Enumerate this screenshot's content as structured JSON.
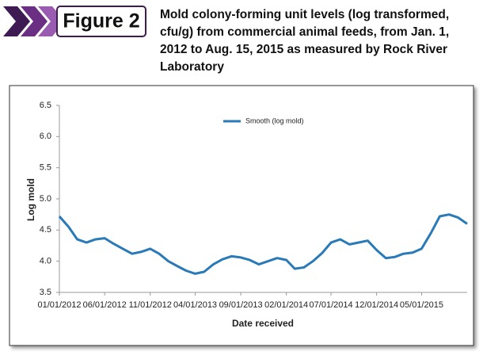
{
  "chart_data": {
    "type": "line",
    "figure_label": "Figure 2",
    "title": "Mold colony-forming unit levels (log transformed, cfu/g) from commercial animal feeds, from Jan. 1, 2012 to Aug. 15, 2015 as measured by Rock River Laboratory",
    "y_label": "Log mold",
    "x_label": "Date received",
    "x": [
      "2012-01-01",
      "2012-02-01",
      "2012-03-01",
      "2012-04-01",
      "2012-05-01",
      "2012-06-01",
      "2012-07-01",
      "2012-08-01",
      "2012-09-01",
      "2012-10-01",
      "2012-11-01",
      "2012-12-01",
      "2013-01-01",
      "2013-02-01",
      "2013-03-01",
      "2013-04-01",
      "2013-05-01",
      "2013-06-01",
      "2013-07-01",
      "2013-08-01",
      "2013-09-01",
      "2013-10-01",
      "2013-11-01",
      "2013-12-01",
      "2014-01-01",
      "2014-02-01",
      "2014-03-01",
      "2014-04-01",
      "2014-05-01",
      "2014-06-01",
      "2014-07-01",
      "2014-08-01",
      "2014-09-01",
      "2014-10-01",
      "2014-11-01",
      "2014-12-01",
      "2015-01-01",
      "2015-02-01",
      "2015-03-01",
      "2015-04-01",
      "2015-05-01",
      "2015-06-01",
      "2015-07-01",
      "2015-08-01",
      "2015-09-01",
      "2015-10-01"
    ],
    "series": [
      {
        "name": "Smooth (log mold)",
        "color": "#2a7ab8",
        "values": [
          4.72,
          4.55,
          4.35,
          4.3,
          4.35,
          4.37,
          4.28,
          4.2,
          4.12,
          4.15,
          4.2,
          4.12,
          4.0,
          3.92,
          3.85,
          3.8,
          3.83,
          3.95,
          4.03,
          4.08,
          4.06,
          4.02,
          3.95,
          4.0,
          4.05,
          4.02,
          3.88,
          3.9,
          4.0,
          4.13,
          4.3,
          4.35,
          4.27,
          4.3,
          4.33,
          4.18,
          4.05,
          4.07,
          4.12,
          4.14,
          4.2,
          4.45,
          4.72,
          4.75,
          4.7,
          4.6
        ]
      }
    ],
    "xlim": [
      "2012-01-01",
      "2015-10-01"
    ],
    "xticks": [
      {
        "value": "2012-01-01",
        "label": "01/01/2012"
      },
      {
        "value": "2012-06-01",
        "label": "06/01/2012"
      },
      {
        "value": "2012-11-01",
        "label": "11/01/2012"
      },
      {
        "value": "2013-04-01",
        "label": "04/01/2013"
      },
      {
        "value": "2013-09-01",
        "label": "09/01/2013"
      },
      {
        "value": "2014-02-01",
        "label": "02/01/2014"
      },
      {
        "value": "2014-07-01",
        "label": "07/01/2014"
      },
      {
        "value": "2014-12-01",
        "label": "12/01/2014"
      },
      {
        "value": "2015-05-01",
        "label": "05/01/2015"
      }
    ],
    "ylim": [
      3.5,
      6.5
    ],
    "yticks": [
      3.5,
      {
        "value": 4,
        "label": "4.0"
      },
      4.5,
      {
        "value": 5,
        "label": "5.0"
      },
      5.5,
      {
        "value": 6,
        "label": "6.0"
      },
      6.5
    ],
    "grid": false,
    "legend": "top"
  }
}
